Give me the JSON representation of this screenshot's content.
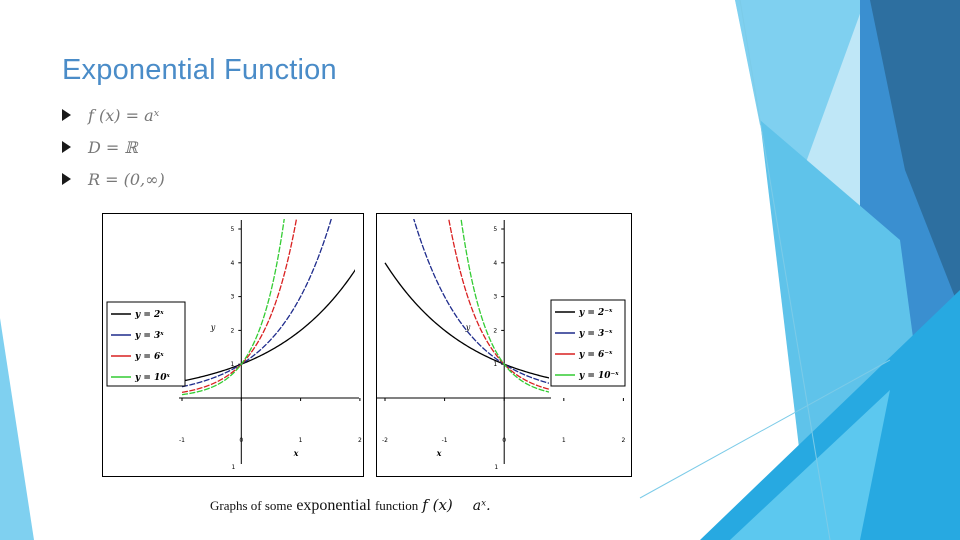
{
  "slide": {
    "title": "Exponential Function",
    "bullets": [
      "f (x) = aˣ",
      "D = ℝ",
      "R = (0,∞)"
    ]
  },
  "caption": {
    "part1": "Graphs of some",
    "part2": "exponential",
    "part3": "function",
    "part4": "f (x)",
    "part5": "aˣ."
  },
  "colors": {
    "title": "#4a8cc8",
    "deco_light": "#7fd0f0",
    "deco_mid": "#3aa8dc",
    "deco_dark": "#2d6fa0",
    "series": [
      "#000000",
      "#1f2c8c",
      "#d92020",
      "#33cc33"
    ]
  },
  "chart_data": [
    {
      "type": "line",
      "xlabel": "x",
      "ylabel": "y",
      "xlim": [
        -1,
        2
      ],
      "ylim": [
        -1,
        6
      ],
      "x_ticks": [
        "-1",
        "0",
        "1",
        "2"
      ],
      "y_ticks": [
        "1",
        "2",
        "3",
        "4",
        "5",
        "6"
      ],
      "y_neg_tick": "1",
      "legend": "left",
      "grid": false,
      "series": [
        {
          "name": "y = 2ˣ",
          "base": 2,
          "color": "#000000",
          "dash": false
        },
        {
          "name": "y = 3ˣ",
          "base": 3,
          "color": "#1f2c8c",
          "dash": true
        },
        {
          "name": "y = 6ˣ",
          "base": 6,
          "color": "#d92020",
          "dash": true
        },
        {
          "name": "y = 10ˣ",
          "base": 10,
          "color": "#33cc33",
          "dash": true
        }
      ]
    },
    {
      "type": "line",
      "xlabel": "x",
      "ylabel": "y",
      "xlim": [
        -2,
        2
      ],
      "ylim": [
        -1,
        6
      ],
      "x_ticks": [
        "-2",
        "-1",
        "0",
        "1",
        "2"
      ],
      "y_ticks": [
        "1",
        "2",
        "3",
        "4",
        "5",
        "6"
      ],
      "y_neg_tick": "1",
      "legend": "right",
      "grid": false,
      "series": [
        {
          "name": "y = 2⁻ˣ",
          "base": 0.5,
          "color": "#000000",
          "dash": false
        },
        {
          "name": "y = 3⁻ˣ",
          "base": 0.3333333,
          "color": "#1f2c8c",
          "dash": true
        },
        {
          "name": "y = 6⁻ˣ",
          "base": 0.1666667,
          "color": "#d92020",
          "dash": true
        },
        {
          "name": "y = 10⁻ˣ",
          "base": 0.1,
          "color": "#33cc33",
          "dash": true
        }
      ]
    }
  ]
}
